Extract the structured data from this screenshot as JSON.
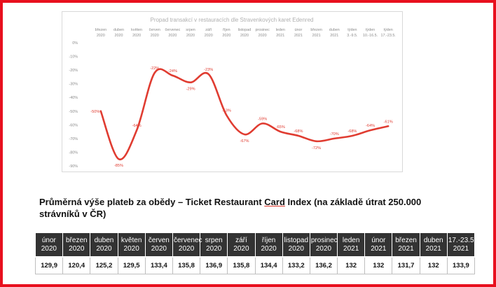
{
  "colors": {
    "frame": "#e8101e",
    "line": "#e03c31",
    "header_bg": "#333333"
  },
  "chart_data": {
    "type": "line",
    "title": "Propad transakcí v restauracích dle Stravenkových karet Edenred",
    "categories": [
      [
        "březen",
        "2020"
      ],
      [
        "duben",
        "2020"
      ],
      [
        "květen",
        "2020"
      ],
      [
        "červen",
        "2020"
      ],
      [
        "červenec",
        "2020"
      ],
      [
        "srpen",
        "2020"
      ],
      [
        "září",
        "2020"
      ],
      [
        "říjen",
        "2020"
      ],
      [
        "listopad",
        "2020"
      ],
      [
        "prosinec",
        "2020"
      ],
      [
        "leden",
        "2021"
      ],
      [
        "únor",
        "2021"
      ],
      [
        "březen",
        "2021"
      ],
      [
        "duben",
        "2021"
      ],
      [
        "týden",
        "3.-9.5."
      ],
      [
        "týden",
        "10.-16.5."
      ],
      [
        "týden",
        "17.-23.5."
      ]
    ],
    "series": [
      {
        "values": [
          -50,
          -85,
          -64,
          -22,
          -24,
          -29,
          -23,
          -53,
          -67,
          -59,
          -65,
          -68,
          -72,
          -70,
          -68,
          -64,
          -61
        ]
      }
    ],
    "data_labels": [
      "-50%",
      "-85%",
      "-64%",
      "-22%",
      "-24%",
      "-29%",
      "-23%",
      "-53%",
      "-67%",
      "-59%",
      "-65%",
      "-68%",
      "-72%",
      "-70%",
      "-68%",
      "-64%",
      "-61%"
    ],
    "y_ticks": [
      {
        "value": 0,
        "label": "0%"
      },
      {
        "value": -10,
        "label": "-10%"
      },
      {
        "value": -20,
        "label": "-20%"
      },
      {
        "value": -30,
        "label": "-30%"
      },
      {
        "value": -40,
        "label": "-40%"
      },
      {
        "value": -50,
        "label": "-50%"
      },
      {
        "value": -60,
        "label": "-60%"
      },
      {
        "value": -70,
        "label": "-70%"
      },
      {
        "value": -80,
        "label": "-80%"
      },
      {
        "value": -90,
        "label": "-90%"
      }
    ],
    "ylim": [
      -90,
      0
    ],
    "grid": false,
    "legend": "none"
  },
  "heading": {
    "before": "Průměrná výše plateb za obědy – Ticket Restaurant ",
    "card": "Card",
    "after": " Index (na základě útrat 250.000 strávníků v ČR)"
  },
  "table": {
    "headers": [
      [
        "únor",
        "2020"
      ],
      [
        "březen",
        "2020"
      ],
      [
        "duben",
        "2020"
      ],
      [
        "květen",
        "2020"
      ],
      [
        "červen",
        "2020"
      ],
      [
        "červenec",
        "2020"
      ],
      [
        "srpen",
        "2020"
      ],
      [
        "září",
        "2020"
      ],
      [
        "říjen",
        "2020"
      ],
      [
        "listopad",
        "2020"
      ],
      [
        "prosinec",
        "2020"
      ],
      [
        "leden",
        "2021"
      ],
      [
        "únor",
        "2021"
      ],
      [
        "březen",
        "2021"
      ],
      [
        "duben",
        "2021"
      ],
      [
        "17.-23.5.",
        "2021"
      ]
    ],
    "values": [
      "129,9",
      "120,4",
      "125,2",
      "129,5",
      "133,4",
      "135,8",
      "136,9",
      "135,8",
      "134,4",
      "133,2",
      "136,2",
      "132",
      "132",
      "131,7",
      "132",
      "133,9"
    ]
  }
}
